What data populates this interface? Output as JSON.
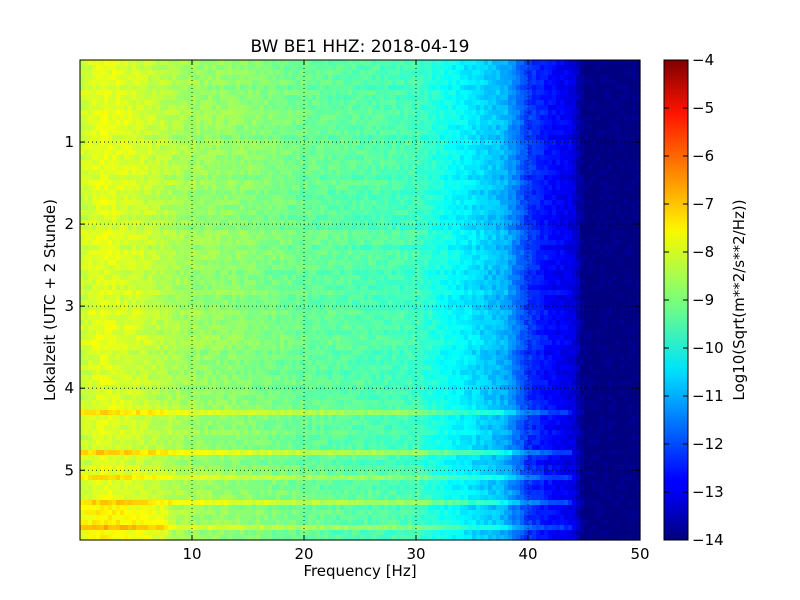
{
  "chart_data": {
    "type": "heatmap",
    "title": "BW BE1 HHZ: 2018-04-19",
    "xlabel": "Frequency [Hz]",
    "ylabel": "Lokalzeit (UTC + 2 Stunde)",
    "xlim": [
      0,
      50
    ],
    "ylim": [
      0,
      5.85
    ],
    "y_inverted": true,
    "x_ticks": [
      10,
      20,
      30,
      40,
      50
    ],
    "y_ticks": [
      1,
      2,
      3,
      4,
      5
    ],
    "grid": true,
    "colormap": "jet",
    "colorbar": {
      "label": "Log10(Sqrt(m**2/s**2/Hz))",
      "range": [
        -14,
        -4
      ],
      "ticks": [
        -4,
        -5,
        -6,
        -7,
        -8,
        -9,
        -10,
        -11,
        -12,
        -13,
        -14
      ]
    },
    "profile": {
      "frequency_hz": [
        0,
        2,
        5,
        10,
        15,
        20,
        25,
        30,
        32,
        35,
        38,
        40,
        42,
        44,
        45,
        50
      ],
      "log10_value": [
        -8.3,
        -8.0,
        -8.2,
        -8.7,
        -8.9,
        -9.2,
        -9.4,
        -9.6,
        -10.0,
        -10.5,
        -11.0,
        -12.2,
        -12.7,
        -13.0,
        -14.0,
        -14.0
      ]
    }
  }
}
